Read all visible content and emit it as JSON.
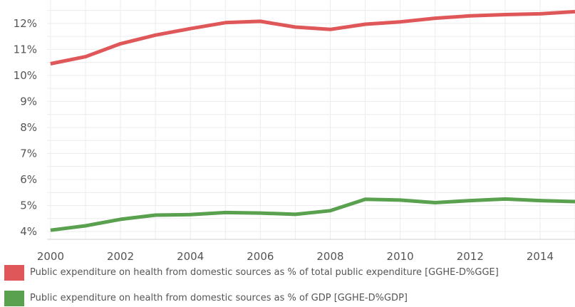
{
  "chart_data": {
    "type": "line",
    "x": [
      2000,
      2001,
      2002,
      2003,
      2004,
      2005,
      2006,
      2007,
      2008,
      2009,
      2010,
      2011,
      2012,
      2013,
      2014,
      2015
    ],
    "series": [
      {
        "name": "Public expenditure on health from domestic sources as % of total public expenditure [GGHE-D%GGE]",
        "color": "#e05759",
        "values": [
          10.45,
          10.72,
          11.22,
          11.55,
          11.8,
          12.03,
          12.08,
          11.86,
          11.77,
          11.97,
          12.06,
          12.2,
          12.29,
          12.34,
          12.37,
          12.45
        ]
      },
      {
        "name": "Public expenditure on health from domestic sources as % of GDP [GGHE-D%GDP]",
        "color": "#59a14f",
        "values": [
          4.05,
          4.22,
          4.47,
          4.63,
          4.65,
          4.73,
          4.71,
          4.66,
          4.8,
          5.24,
          5.21,
          5.11,
          5.19,
          5.25,
          5.19,
          5.15
        ]
      }
    ],
    "x_ticks": [
      "2000",
      "2002",
      "2004",
      "2006",
      "2008",
      "2010",
      "2012",
      "2014"
    ],
    "y_ticks": [
      "4%",
      "5%",
      "6%",
      "7%",
      "8%",
      "9%",
      "10%",
      "11%",
      "12%"
    ],
    "xlim": [
      1999.9,
      2015
    ],
    "ylim": [
      3.7,
      12.9
    ],
    "grid": true,
    "legend_position": "bottom"
  }
}
